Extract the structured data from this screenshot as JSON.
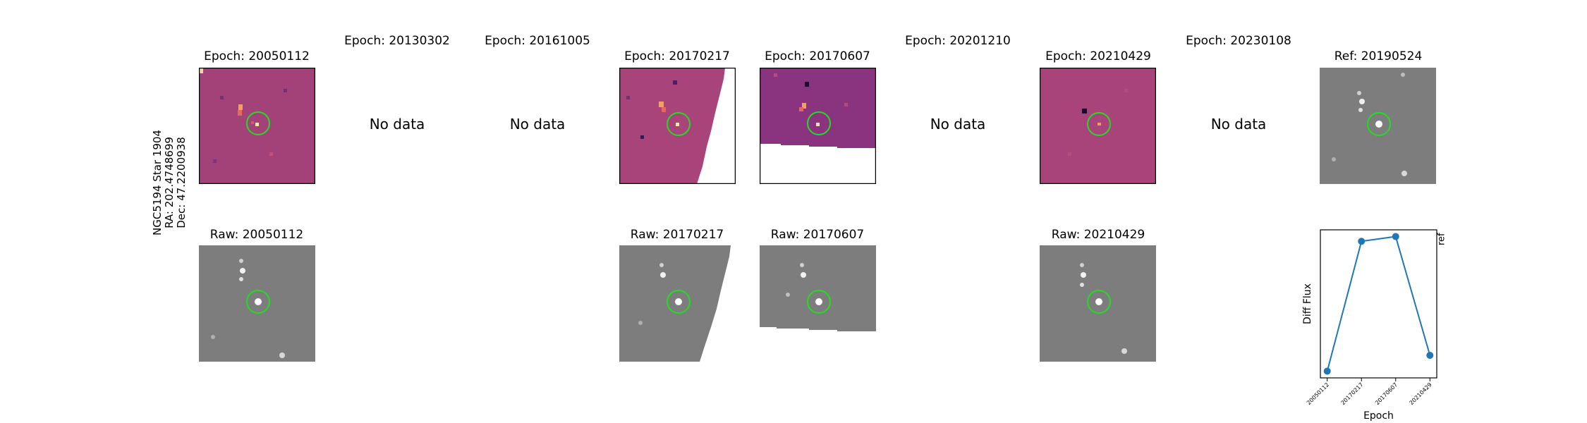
{
  "row_label": [
    "NGC5194 Star 1904",
    "RA: 202.4748699",
    "Dec: 47.2200938"
  ],
  "diff_titles": {
    "e1": "Epoch: 20050112",
    "e2": "Epoch: 20130302",
    "e3": "Epoch: 20161005",
    "e4": "Epoch: 20170217",
    "e5": "Epoch: 20170607",
    "e6": "Epoch: 20201210",
    "e7": "Epoch: 20210429",
    "e8": "Epoch: 20230108",
    "ref": "Ref: 20190524"
  },
  "no_data_label": "No data",
  "raw_titles": {
    "r1": "Raw: 20050112",
    "r4": "Raw: 20170217",
    "r5": "Raw: 20170607",
    "r7": "Raw: 20210429"
  },
  "colors": {
    "diff_bg": "#a8447a",
    "raw_bg": "#7d7d7d",
    "circle": "#22dd22",
    "line": "#1f77b4"
  },
  "chart_data": {
    "type": "line",
    "x": [
      "20050112",
      "20170217",
      "20170607",
      "20210429"
    ],
    "values": [
      0.0,
      0.82,
      0.85,
      0.1
    ],
    "xlabel": "Epoch",
    "ylabel": "Diff Flux",
    "ref_line_label": "ref",
    "ref_line_position": 3.5,
    "ref_line_style": "dotted",
    "marker": "circle",
    "grid": false
  }
}
